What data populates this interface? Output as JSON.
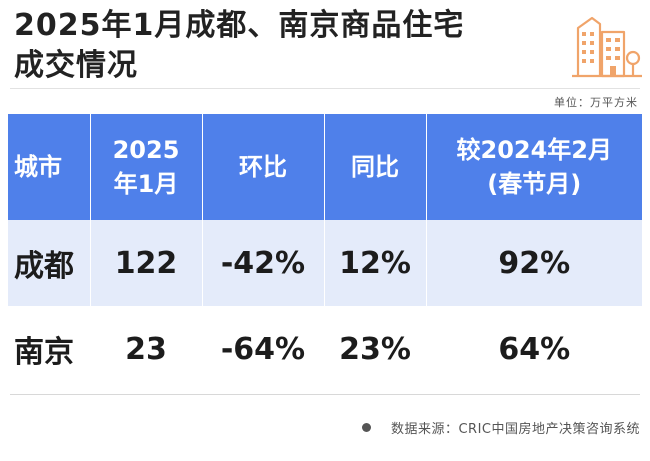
{
  "title": {
    "line1": "2025年1月成都、南京商品住宅",
    "line2": "成交情况"
  },
  "unit": "单位：万平方米",
  "table": {
    "headers": [
      [
        "城市"
      ],
      [
        "2025",
        "年1月"
      ],
      [
        "环比"
      ],
      [
        "同比"
      ],
      [
        "较2024年2月",
        "(春节月)"
      ]
    ],
    "rows": [
      [
        "成都",
        "122",
        "-42%",
        "12%",
        "92%"
      ],
      [
        "南京",
        "23",
        "-64%",
        "23%",
        "64%"
      ]
    ]
  },
  "source": "数据来源：CRIC中国房地产决策咨询系统",
  "colors": {
    "header_bg": "#4f80ea",
    "row_shade": "#e4ebfa",
    "icon_accent": "#f0a46a"
  },
  "icons": {
    "building": "building-icon"
  }
}
